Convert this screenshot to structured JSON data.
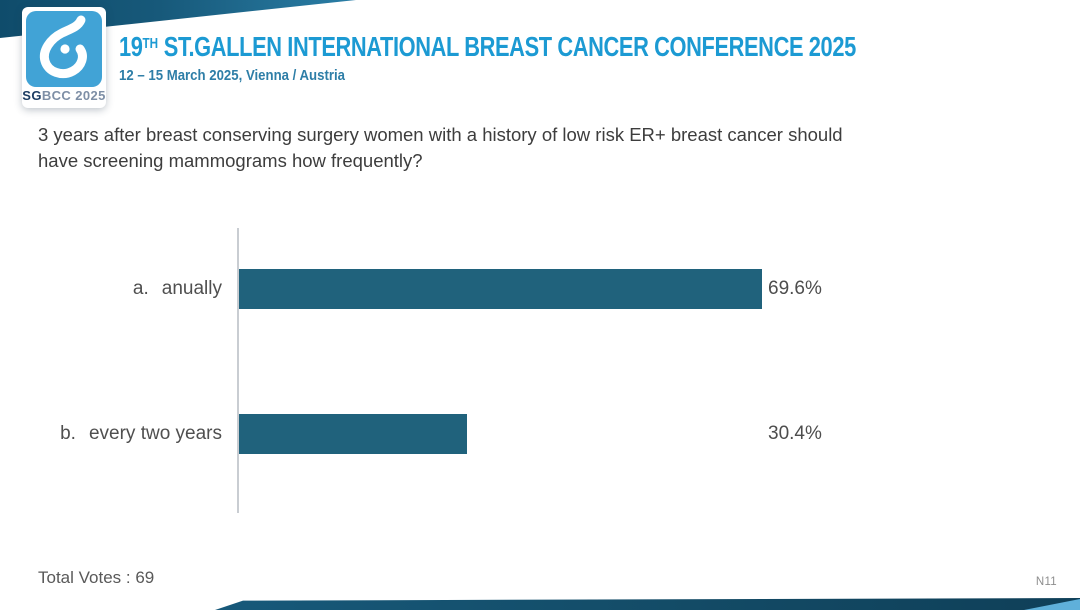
{
  "logo": {
    "icon": "sgbcc-drop-icon",
    "badge_text_primary": "SG",
    "badge_text_secondary": "BCC 2025"
  },
  "header": {
    "title_number": "19",
    "title_ordinal": "TH",
    "title_text": " ST.GALLEN INTERNATIONAL BREAST CANCER CONFERENCE 2025",
    "subtitle": "12 – 15 March 2025, Vienna / Austria"
  },
  "question": {
    "line1": "3 years after breast conserving surgery women with a history of low risk ER+ breast cancer should",
    "line2": "have screening mammograms how frequently?"
  },
  "chart_data": {
    "type": "bar",
    "orientation": "horizontal",
    "categories": [
      "anually",
      "every two years"
    ],
    "option_letters": [
      "a.",
      "b."
    ],
    "values": [
      69.6,
      30.4
    ],
    "value_labels": [
      "69.6%",
      "30.4%"
    ],
    "xlim": [
      0,
      100
    ],
    "grid": false,
    "legend": false,
    "bar_color": "#20627C",
    "axis_color": "#C9CDD2",
    "title": "",
    "xlabel": "",
    "ylabel": ""
  },
  "footer": {
    "total_votes": "Total Votes : 69",
    "slide_code": "N11"
  },
  "colors": {
    "accent_blue": "#1C9AD3",
    "subtitle_blue": "#2E7EA7",
    "band_teal_dark": "#0F4C6B",
    "band_teal_light": "#2A7EA6",
    "logo_blue": "#41A3D6",
    "question_text": "#3D3D3D",
    "label_gray": "#4F4F4F"
  }
}
